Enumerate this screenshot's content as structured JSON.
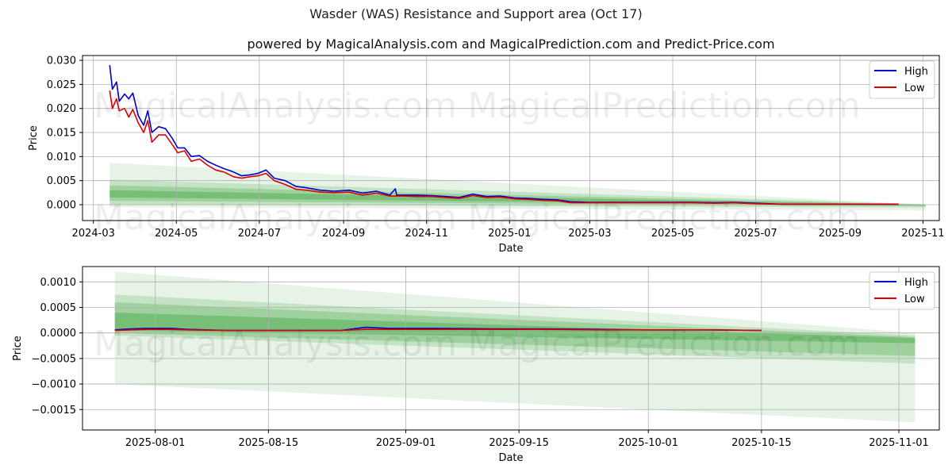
{
  "header": {
    "title": "Wasder (WAS) Resistance and Support area (Oct 17)",
    "subtitle": "powered by MagicalAnalysis.com and MagicalPrediction.com and Predict-Price.com"
  },
  "watermarks": [
    "MagicalAnalysis.com",
    "MagicalPrediction.com"
  ],
  "colors": {
    "high": "#0000cc",
    "low": "#dd0000",
    "band": "#2e9c2e",
    "grid": "#b0b0b0"
  },
  "chart_data": [
    {
      "type": "line",
      "xlabel": "Date",
      "ylabel": "Price",
      "grid": true,
      "legend_position": "top-right",
      "x_range": [
        "2024-02-22",
        "2025-11-13"
      ],
      "ylim": [
        -0.0033,
        0.031
      ],
      "x_ticks": [
        "2024-03-01",
        "2024-05-01",
        "2024-07-01",
        "2024-09-01",
        "2024-11-01",
        "2025-01-01",
        "2025-03-01",
        "2025-05-01",
        "2025-07-01",
        "2025-09-01",
        "2025-11-01"
      ],
      "x_tick_labels": [
        "2024-03",
        "2024-05",
        "2024-07",
        "2024-09",
        "2024-11",
        "2025-01",
        "2025-03",
        "2025-05",
        "2025-07",
        "2025-09",
        "2025-11"
      ],
      "y_ticks": [
        0,
        0.005,
        0.01,
        0.015,
        0.02,
        0.025,
        0.03
      ],
      "y_tick_labels": [
        "0.000",
        "0.005",
        "0.010",
        "0.015",
        "0.020",
        "0.025",
        "0.030"
      ],
      "series": [
        {
          "name": "High",
          "dates": [
            "2024-03-13",
            "2024-03-15",
            "2024-03-18",
            "2024-03-20",
            "2024-03-24",
            "2024-03-27",
            "2024-03-30",
            "2024-04-03",
            "2024-04-07",
            "2024-04-10",
            "2024-04-13",
            "2024-04-18",
            "2024-04-23",
            "2024-04-28",
            "2024-05-02",
            "2024-05-07",
            "2024-05-12",
            "2024-05-18",
            "2024-05-24",
            "2024-05-30",
            "2024-06-05",
            "2024-06-12",
            "2024-06-18",
            "2024-06-24",
            "2024-06-30",
            "2024-07-06",
            "2024-07-12",
            "2024-07-20",
            "2024-07-28",
            "2024-08-05",
            "2024-08-15",
            "2024-08-25",
            "2024-09-05",
            "2024-09-15",
            "2024-09-25",
            "2024-10-05",
            "2024-10-09",
            "2024-10-10",
            "2024-10-15",
            "2024-10-25",
            "2024-11-05",
            "2024-11-15",
            "2024-11-25",
            "2024-12-05",
            "2024-12-15",
            "2024-12-25",
            "2025-01-05",
            "2025-01-15",
            "2025-01-25",
            "2025-02-05",
            "2025-02-15",
            "2025-03-01",
            "2025-03-15",
            "2025-04-01",
            "2025-04-15",
            "2025-05-01",
            "2025-05-15",
            "2025-06-01",
            "2025-06-15",
            "2025-07-01",
            "2025-07-20",
            "2025-08-10",
            "2025-09-01",
            "2025-09-20",
            "2025-10-14"
          ],
          "values": [
            0.029,
            0.024,
            0.0255,
            0.0215,
            0.023,
            0.022,
            0.0232,
            0.0185,
            0.0165,
            0.0195,
            0.015,
            0.0162,
            0.0158,
            0.0138,
            0.0118,
            0.0118,
            0.01,
            0.0102,
            0.009,
            0.0082,
            0.0075,
            0.0068,
            0.006,
            0.0062,
            0.0065,
            0.0072,
            0.0055,
            0.005,
            0.0038,
            0.0035,
            0.003,
            0.0028,
            0.003,
            0.0024,
            0.0028,
            0.002,
            0.0033,
            0.002,
            0.002,
            0.002,
            0.0019,
            0.0017,
            0.0015,
            0.0022,
            0.0017,
            0.0018,
            0.0014,
            0.0013,
            0.0011,
            0.001,
            0.0006,
            0.0005,
            0.0005,
            0.0005,
            0.0005,
            0.0005,
            0.0005,
            0.0004,
            0.0005,
            0.0003,
            0.0001,
            0.0001,
            0.0001,
            0.0001,
            0.0001
          ]
        },
        {
          "name": "Low",
          "dates": [
            "2024-03-13",
            "2024-03-15",
            "2024-03-18",
            "2024-03-20",
            "2024-03-24",
            "2024-03-27",
            "2024-03-30",
            "2024-04-03",
            "2024-04-07",
            "2024-04-10",
            "2024-04-13",
            "2024-04-18",
            "2024-04-23",
            "2024-04-28",
            "2024-05-02",
            "2024-05-07",
            "2024-05-12",
            "2024-05-18",
            "2024-05-24",
            "2024-05-30",
            "2024-06-05",
            "2024-06-12",
            "2024-06-18",
            "2024-06-24",
            "2024-06-30",
            "2024-07-06",
            "2024-07-12",
            "2024-07-20",
            "2024-07-28",
            "2024-08-05",
            "2024-08-15",
            "2024-08-25",
            "2024-09-05",
            "2024-09-15",
            "2024-09-25",
            "2024-10-05",
            "2024-10-15",
            "2024-10-25",
            "2024-11-05",
            "2024-11-15",
            "2024-11-25",
            "2024-12-05",
            "2024-12-15",
            "2024-12-25",
            "2025-01-05",
            "2025-01-15",
            "2025-01-25",
            "2025-02-05",
            "2025-02-15",
            "2025-03-01",
            "2025-03-15",
            "2025-04-01",
            "2025-04-15",
            "2025-05-01",
            "2025-05-15",
            "2025-06-01",
            "2025-06-15",
            "2025-07-01",
            "2025-07-20",
            "2025-08-10",
            "2025-09-01",
            "2025-09-20",
            "2025-10-14"
          ],
          "values": [
            0.0237,
            0.02,
            0.022,
            0.0195,
            0.02,
            0.0182,
            0.0198,
            0.017,
            0.015,
            0.0175,
            0.013,
            0.0145,
            0.0145,
            0.0125,
            0.0108,
            0.0112,
            0.009,
            0.0095,
            0.0082,
            0.0072,
            0.0068,
            0.0058,
            0.0055,
            0.0058,
            0.006,
            0.0065,
            0.005,
            0.0042,
            0.0032,
            0.003,
            0.0026,
            0.0025,
            0.0026,
            0.002,
            0.0024,
            0.0018,
            0.0018,
            0.0017,
            0.0017,
            0.0015,
            0.0013,
            0.0019,
            0.0015,
            0.0016,
            0.0012,
            0.0011,
            0.0009,
            0.0008,
            0.0004,
            0.0004,
            0.0004,
            0.0004,
            0.0004,
            0.0004,
            0.0004,
            0.0003,
            0.0004,
            0.0002,
            0.0001,
            0.0001,
            0.0001,
            0.0001,
            0.0001
          ]
        }
      ],
      "bands": [
        {
          "x": [
            "2024-03-13",
            "2025-11-03"
          ],
          "upper": [
            0.0087,
            0.0
          ],
          "lower": [
            -0.0005,
            -0.0012
          ],
          "opacity": 0.12
        },
        {
          "x": [
            "2024-03-13",
            "2025-11-03"
          ],
          "upper": [
            0.0052,
            0.0001
          ],
          "lower": [
            0.0,
            -0.0006
          ],
          "opacity": 0.18
        },
        {
          "x": [
            "2024-03-13",
            "2025-11-03"
          ],
          "upper": [
            0.004,
            0.0
          ],
          "lower": [
            0.0008,
            -0.0003
          ],
          "opacity": 0.25
        },
        {
          "x": [
            "2024-03-13",
            "2025-11-03"
          ],
          "upper": [
            0.003,
            0.0
          ],
          "lower": [
            0.0015,
            -0.0002
          ],
          "opacity": 0.35
        }
      ]
    },
    {
      "type": "line",
      "xlabel": "Date",
      "ylabel": "Price",
      "grid": true,
      "legend_position": "top-right",
      "x_range": [
        "2025-07-23",
        "2025-11-06"
      ],
      "ylim": [
        -0.0019,
        0.0013
      ],
      "x_ticks": [
        "2025-08-01",
        "2025-08-15",
        "2025-09-01",
        "2025-09-15",
        "2025-10-01",
        "2025-10-15",
        "2025-11-01"
      ],
      "x_tick_labels": [
        "2025-08-01",
        "2025-08-15",
        "2025-09-01",
        "2025-09-15",
        "2025-10-01",
        "2025-10-15",
        "2025-11-01"
      ],
      "y_ticks": [
        -0.0015,
        -0.001,
        -0.0005,
        0,
        0.0005,
        0.001
      ],
      "y_tick_labels": [
        "−0.0015",
        "−0.0010",
        "−0.0005",
        "0.0000",
        "0.0005",
        "0.0010"
      ],
      "series": [
        {
          "name": "High",
          "dates": [
            "2025-07-27",
            "2025-07-29",
            "2025-07-31",
            "2025-08-03",
            "2025-08-05",
            "2025-08-10",
            "2025-08-18",
            "2025-08-24",
            "2025-08-27",
            "2025-08-30",
            "2025-09-05",
            "2025-09-12",
            "2025-09-18",
            "2025-09-25",
            "2025-10-01",
            "2025-10-08",
            "2025-10-15"
          ],
          "values": [
            6e-05,
            8e-05,
            9e-05,
            9e-05,
            7e-05,
            5e-05,
            5e-05,
            5e-05,
            0.00011,
            9e-05,
            9e-05,
            8e-05,
            8e-05,
            7e-05,
            6e-05,
            6e-05,
            5e-05
          ]
        },
        {
          "name": "Low",
          "dates": [
            "2025-07-27",
            "2025-07-29",
            "2025-07-31",
            "2025-08-03",
            "2025-08-05",
            "2025-08-10",
            "2025-08-18",
            "2025-08-24",
            "2025-08-27",
            "2025-08-30",
            "2025-09-05",
            "2025-09-12",
            "2025-09-18",
            "2025-09-25",
            "2025-10-01",
            "2025-10-08",
            "2025-10-15"
          ],
          "values": [
            5e-05,
            6e-05,
            7e-05,
            7e-05,
            6e-05,
            5e-05,
            5e-05,
            5e-05,
            7e-05,
            7e-05,
            7e-05,
            7e-05,
            7e-05,
            6e-05,
            6e-05,
            6e-05,
            5e-05
          ]
        }
      ],
      "bands": [
        {
          "x": [
            "2025-07-27",
            "2025-11-03"
          ],
          "upper": [
            0.0012,
            0.0
          ],
          "lower": [
            -0.001,
            -0.00175
          ],
          "opacity": 0.12
        },
        {
          "x": [
            "2025-07-27",
            "2025-11-03"
          ],
          "upper": [
            0.00075,
            -5e-05
          ],
          "lower": [
            -5e-05,
            -0.0006
          ],
          "opacity": 0.18
        },
        {
          "x": [
            "2025-07-27",
            "2025-11-03"
          ],
          "upper": [
            0.0006,
            -8e-05
          ],
          "lower": [
            0.0,
            -0.00045
          ],
          "opacity": 0.25
        },
        {
          "x": [
            "2025-07-27",
            "2025-11-03"
          ],
          "upper": [
            0.0004,
            -0.0001
          ],
          "lower": [
            5e-05,
            -0.0002
          ],
          "opacity": 0.35
        }
      ]
    }
  ]
}
